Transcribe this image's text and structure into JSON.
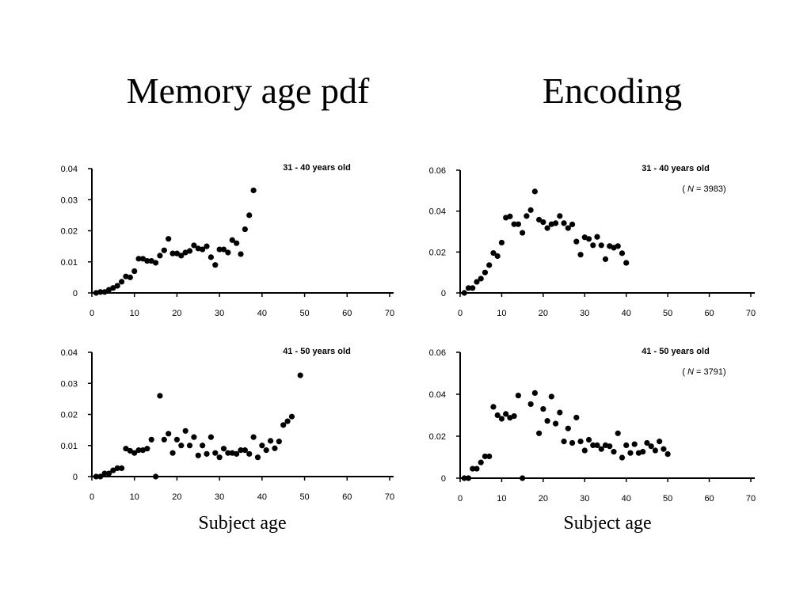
{
  "headings": {
    "left": "Memory age pdf",
    "right": "Encoding"
  },
  "xlabels": {
    "left": "Subject age",
    "right": "Subject age"
  },
  "chart_data": [
    {
      "type": "scatter",
      "title": "31  - 40 years old",
      "subtitle": "",
      "xlabel": "Subject age",
      "ylabel": "",
      "xlim": [
        0,
        70
      ],
      "ylim": [
        0,
        0.04
      ],
      "xticks": [
        0,
        10,
        20,
        30,
        40,
        50,
        60,
        70
      ],
      "yticks": [
        0,
        0.01,
        0.02,
        0.03,
        0.04
      ],
      "ytick_labels": [
        "0",
        "0.01",
        "0.02",
        "0.03",
        "0.04"
      ],
      "x": [
        1,
        2,
        3,
        4,
        5,
        6,
        7,
        8,
        9,
        10,
        11,
        12,
        13,
        14,
        15,
        16,
        17,
        18,
        19,
        20,
        21,
        22,
        23,
        24,
        25,
        26,
        27,
        28,
        29,
        30,
        31,
        32,
        33,
        34,
        35,
        36,
        37,
        38
      ],
      "y": [
        0,
        0.0003,
        0.0003,
        0.001,
        0.0016,
        0.0023,
        0.0036,
        0.0053,
        0.005,
        0.007,
        0.011,
        0.011,
        0.0103,
        0.0103,
        0.0097,
        0.012,
        0.0137,
        0.0174,
        0.0127,
        0.0127,
        0.012,
        0.013,
        0.0135,
        0.0153,
        0.0143,
        0.014,
        0.015,
        0.0115,
        0.009,
        0.014,
        0.014,
        0.013,
        0.017,
        0.016,
        0.0125,
        0.0205,
        0.025,
        0.033
      ]
    },
    {
      "type": "scatter",
      "title": "31  - 40 years old",
      "subtitle_prefix": "( ",
      "subtitle_n": "N",
      "subtitle_value": "  = 3983)",
      "xlabel": "Subject age",
      "ylabel": "",
      "xlim": [
        0,
        70
      ],
      "ylim": [
        0,
        0.06
      ],
      "xticks": [
        0,
        10,
        20,
        30,
        40,
        50,
        60,
        70
      ],
      "yticks": [
        0,
        0.02,
        0.04,
        0.06
      ],
      "ytick_labels": [
        "0",
        "0.02",
        "0.04",
        "0.06"
      ],
      "x": [
        1,
        2,
        3,
        4,
        5,
        6,
        7,
        8,
        9,
        10,
        11,
        12,
        13,
        14,
        15,
        16,
        17,
        18,
        19,
        20,
        21,
        22,
        23,
        24,
        25,
        26,
        27,
        28,
        29,
        30,
        31,
        32,
        33,
        34,
        35,
        36,
        37,
        38,
        39,
        40
      ],
      "y": [
        0,
        0.0024,
        0.0024,
        0.0054,
        0.007,
        0.01,
        0.0136,
        0.0195,
        0.018,
        0.0246,
        0.0368,
        0.0374,
        0.0336,
        0.0336,
        0.0294,
        0.0376,
        0.0405,
        0.0496,
        0.0358,
        0.0346,
        0.0317,
        0.0336,
        0.0341,
        0.0376,
        0.0341,
        0.0317,
        0.0335,
        0.0251,
        0.0187,
        0.0272,
        0.0264,
        0.0233,
        0.0274,
        0.0233,
        0.0165,
        0.0229,
        0.0221,
        0.0229,
        0.0194,
        0.0147
      ]
    },
    {
      "type": "scatter",
      "title": "41  - 50 years old",
      "subtitle": "",
      "xlabel": "Subject age",
      "ylabel": "",
      "xlim": [
        0,
        70
      ],
      "ylim": [
        0,
        0.04
      ],
      "xticks": [
        0,
        10,
        20,
        30,
        40,
        50,
        60,
        70
      ],
      "yticks": [
        0,
        0.01,
        0.02,
        0.03,
        0.04
      ],
      "ytick_labels": [
        "0",
        "0.01",
        "0.02",
        "0.03",
        "0.04"
      ],
      "x": [
        1,
        2,
        3,
        4,
        5,
        6,
        7,
        8,
        9,
        10,
        11,
        12,
        13,
        14,
        15,
        16,
        17,
        18,
        19,
        20,
        21,
        22,
        23,
        24,
        25,
        26,
        27,
        28,
        29,
        30,
        31,
        32,
        33,
        34,
        35,
        36,
        37,
        38,
        39,
        40,
        41,
        42,
        43,
        44,
        45,
        46,
        47,
        49
      ],
      "y": [
        0,
        0,
        0.001,
        0.001,
        0.002,
        0.0027,
        0.0027,
        0.009,
        0.0083,
        0.0076,
        0.0085,
        0.0085,
        0.009,
        0.0119,
        0,
        0.026,
        0.0119,
        0.0138,
        0.0076,
        0.0119,
        0.01,
        0.0147,
        0.01,
        0.0127,
        0.0068,
        0.01,
        0.0073,
        0.0127,
        0.0076,
        0.0062,
        0.009,
        0.0076,
        0.0076,
        0.0073,
        0.0085,
        0.0085,
        0.0073,
        0.0127,
        0.0062,
        0.01,
        0.0085,
        0.0115,
        0.0091,
        0.0113,
        0.0166,
        0.0178,
        0.0193,
        0.0326
      ]
    },
    {
      "type": "scatter",
      "title": "41  - 50 years old",
      "subtitle_prefix": "( ",
      "subtitle_n": "N",
      "subtitle_value": "  = 3791)",
      "xlabel": "Subject age",
      "ylabel": "",
      "xlim": [
        0,
        70
      ],
      "ylim": [
        0,
        0.06
      ],
      "xticks": [
        0,
        10,
        20,
        30,
        40,
        50,
        60,
        70
      ],
      "yticks": [
        0,
        0.02,
        0.04,
        0.06
      ],
      "ytick_labels": [
        "0",
        "0.02",
        "0.04",
        "0.06"
      ],
      "x": [
        1,
        2,
        3,
        4,
        5,
        6,
        7,
        8,
        9,
        10,
        11,
        12,
        13,
        14,
        15,
        17,
        18,
        19,
        20,
        21,
        22,
        23,
        24,
        25,
        26,
        27,
        28,
        29,
        30,
        31,
        32,
        33,
        34,
        35,
        36,
        37,
        38,
        39,
        40,
        41,
        42,
        43,
        44,
        45,
        46,
        47,
        48,
        49,
        50
      ],
      "y": [
        0,
        0,
        0.0045,
        0.0045,
        0.0075,
        0.0104,
        0.0104,
        0.034,
        0.03,
        0.0283,
        0.0306,
        0.0288,
        0.0296,
        0.0394,
        0,
        0.0353,
        0.0406,
        0.0214,
        0.033,
        0.0273,
        0.0389,
        0.026,
        0.0313,
        0.0175,
        0.0237,
        0.0168,
        0.0289,
        0.0175,
        0.0132,
        0.0183,
        0.0157,
        0.0157,
        0.0139,
        0.0157,
        0.0152,
        0.0126,
        0.0214,
        0.0098,
        0.0157,
        0.012,
        0.0162,
        0.012,
        0.0126,
        0.0168,
        0.0152,
        0.0132,
        0.0175,
        0.0139,
        0.0115
      ]
    }
  ]
}
